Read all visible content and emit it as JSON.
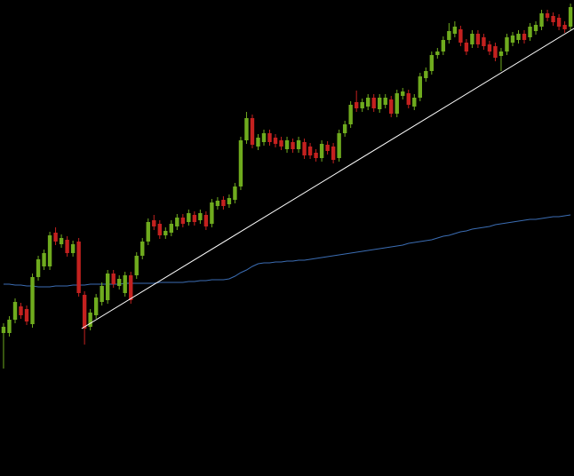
{
  "chart_data": {
    "type": "candlestick",
    "ylim": [
      0,
      536
    ],
    "xlim": [
      -0.61,
      98.6
    ],
    "up_color": "#6fab1e",
    "down_color": "#c4211f",
    "open": [
      161,
      161,
      176,
      191,
      188,
      171,
      224,
      236,
      236,
      274,
      261,
      266,
      251,
      264,
      204,
      168,
      181,
      196,
      198,
      228,
      214,
      206,
      226,
      226,
      248,
      264,
      288,
      284,
      271,
      274,
      281,
      291,
      286,
      294,
      288,
      294,
      284,
      304,
      311,
      306,
      311,
      326,
      378,
      403,
      371,
      376,
      386,
      381,
      378,
      368,
      376,
      368,
      376,
      371,
      364,
      358,
      373,
      371,
      358,
      386,
      396,
      421,
      414,
      416,
      426,
      413,
      418,
      424,
      408,
      428,
      431,
      416,
      426,
      448,
      456,
      474,
      478,
      491,
      498,
      503,
      488,
      486,
      498,
      494,
      486,
      484,
      473,
      478,
      488,
      491,
      498,
      494,
      501,
      506,
      521,
      518,
      516,
      508,
      506
    ],
    "high": [
      172,
      180,
      200,
      195,
      192,
      228,
      248,
      255,
      275,
      280,
      272,
      270,
      265,
      268,
      208,
      188,
      205,
      218,
      232,
      232,
      226,
      230,
      230,
      252,
      268,
      290,
      294,
      288,
      280,
      288,
      295,
      295,
      300,
      298,
      300,
      298,
      312,
      314,
      315,
      317,
      330,
      382,
      410,
      407,
      385,
      390,
      390,
      385,
      382,
      382,
      380,
      382,
      380,
      375,
      368,
      378,
      377,
      375,
      390,
      400,
      422,
      434,
      425,
      430,
      430,
      430,
      430,
      428,
      435,
      437,
      435,
      430,
      454,
      460,
      478,
      482,
      495,
      510,
      512,
      507,
      492,
      502,
      502,
      498,
      490,
      488,
      482,
      498,
      500,
      502,
      502,
      510,
      512,
      525,
      525,
      522,
      520,
      512,
      532
    ],
    "low": [
      121,
      157,
      172,
      177,
      170,
      167,
      220,
      232,
      232,
      260,
      257,
      247,
      247,
      202,
      148,
      164,
      177,
      192,
      194,
      212,
      210,
      202,
      194,
      222,
      244,
      260,
      277,
      267,
      267,
      270,
      277,
      280,
      282,
      282,
      284,
      277,
      280,
      300,
      300,
      302,
      307,
      322,
      374,
      369,
      367,
      372,
      372,
      370,
      367,
      364,
      364,
      364,
      357,
      357,
      354,
      354,
      362,
      352,
      354,
      382,
      392,
      410,
      410,
      412,
      410,
      409,
      414,
      404,
      404,
      424,
      414,
      412,
      422,
      444,
      452,
      470,
      474,
      487,
      494,
      484,
      474,
      482,
      482,
      480,
      474,
      467,
      456,
      474,
      484,
      487,
      487,
      490,
      497,
      502,
      512,
      507,
      502,
      499,
      502
    ],
    "close": [
      168,
      176,
      196,
      181,
      174,
      224,
      244,
      251,
      271,
      264,
      268,
      251,
      261,
      206,
      166,
      184,
      201,
      214,
      228,
      216,
      222,
      226,
      198,
      248,
      264,
      286,
      281,
      271,
      276,
      284,
      291,
      284,
      296,
      286,
      296,
      281,
      308,
      310,
      304,
      313,
      326,
      378,
      403,
      373,
      381,
      386,
      376,
      374,
      371,
      378,
      368,
      378,
      361,
      361,
      358,
      374,
      366,
      356,
      386,
      396,
      418,
      414,
      421,
      426,
      414,
      426,
      426,
      408,
      431,
      433,
      418,
      426,
      450,
      456,
      474,
      478,
      491,
      501,
      506,
      488,
      478,
      498,
      486,
      484,
      478,
      471,
      478,
      494,
      496,
      498,
      491,
      506,
      508,
      521,
      516,
      511,
      506,
      503,
      528
    ],
    "moving_average": {
      "color": "#3b6db3",
      "values": [
        216,
        216,
        215,
        215,
        214,
        214,
        213,
        213,
        213,
        214,
        214,
        214,
        215,
        215,
        215,
        216,
        216,
        216,
        216,
        216,
        216,
        217,
        217,
        217,
        217,
        217,
        217,
        218,
        218,
        218,
        218,
        218,
        219,
        219,
        220,
        220,
        221,
        221,
        221,
        222,
        225,
        229,
        232,
        236,
        239,
        240,
        240,
        241,
        241,
        242,
        242,
        243,
        243,
        244,
        245,
        246,
        247,
        248,
        249,
        250,
        251,
        252,
        253,
        254,
        255,
        256,
        257,
        258,
        259,
        260,
        262,
        263,
        264,
        265,
        266,
        268,
        270,
        271,
        273,
        275,
        276,
        278,
        279,
        280,
        281,
        283,
        284,
        285,
        286,
        287,
        288,
        289,
        289,
        290,
        291,
        292,
        292,
        293,
        294
      ]
    },
    "trendline": {
      "color": "#ffffff",
      "x": [
        13.5,
        98.6
      ],
      "values": [
        166,
        504
      ]
    }
  }
}
